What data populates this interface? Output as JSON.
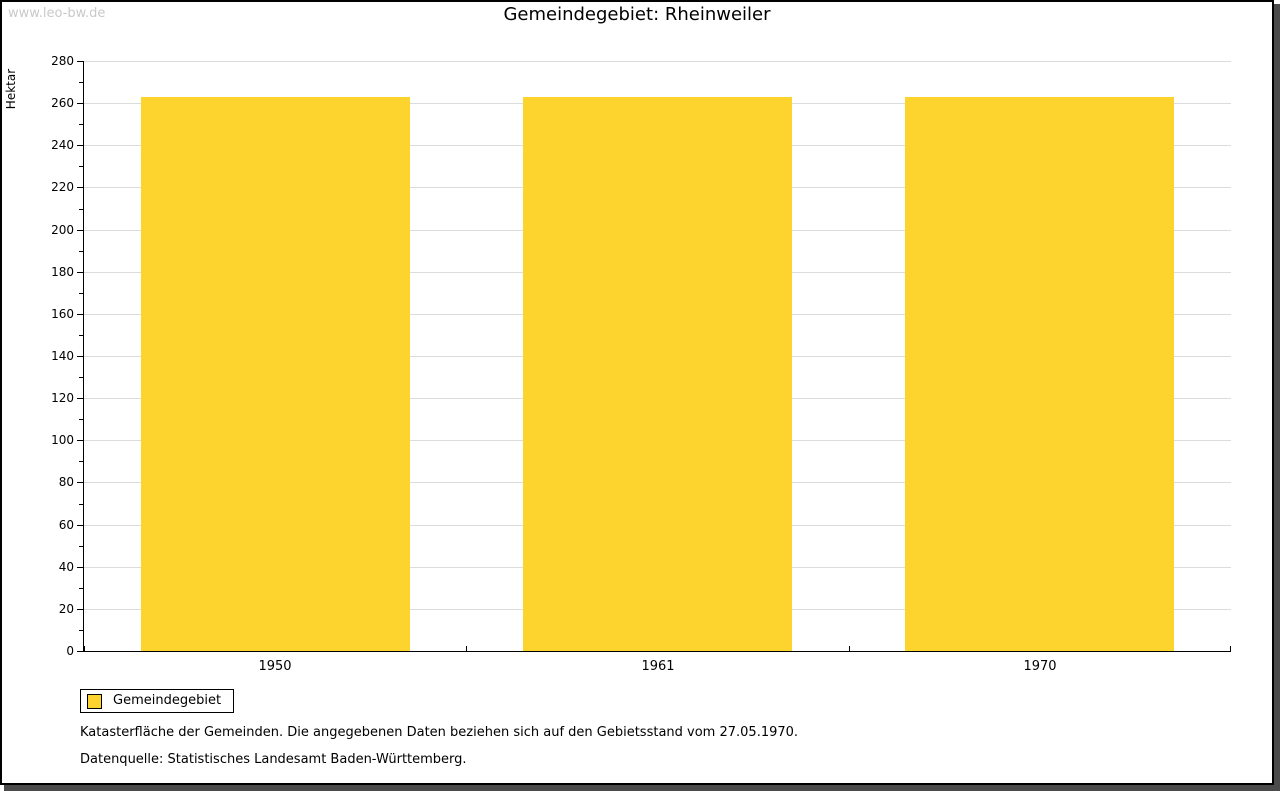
{
  "watermark": "www.leo-bw.de",
  "chart_data": {
    "type": "bar",
    "title": "Gemeindegebiet: Rheinweiler",
    "categories": [
      "1950",
      "1961",
      "1970"
    ],
    "values": [
      263,
      263,
      263
    ],
    "xlabel": "",
    "ylabel": "Hektar",
    "ylim": [
      0,
      280
    ],
    "ytick_step": 20,
    "ytick_minor_step": 10,
    "grid": true,
    "gridline_color": "#dcdcdc",
    "bar_color": "#fcd42d",
    "legend": [
      {
        "label": "Gemeindegebiet",
        "color": "#fcd42d"
      }
    ],
    "legend_position": "bottom-left"
  },
  "footer": {
    "line1": "Katasterfläche der Gemeinden. Die angegebenen Daten beziehen sich auf den Gebietsstand vom 27.05.1970.",
    "line2": "Datenquelle: Statistisches Landesamt Baden-Württemberg."
  }
}
